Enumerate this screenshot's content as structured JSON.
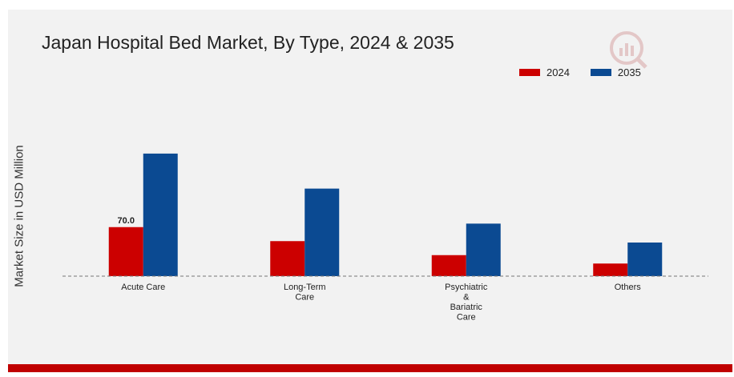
{
  "chart_data": {
    "type": "bar",
    "title": "Japan Hospital Bed Market, By Type, 2024 & 2035",
    "ylabel": "Market Size in USD Million",
    "xlabel": "",
    "categories": [
      "Acute Care",
      "Long-Term Care",
      "Psychiatric & Bariatric Care",
      "Others"
    ],
    "category_label_lines": [
      [
        "Acute Care"
      ],
      [
        "Long-Term",
        "Care"
      ],
      [
        "Psychiatric",
        "&",
        "Bariatric",
        "Care"
      ],
      [
        "Others"
      ]
    ],
    "series": [
      {
        "name": "2024",
        "color": "#cc0000",
        "values": [
          70.0,
          50.0,
          30.0,
          18.0
        ]
      },
      {
        "name": "2035",
        "color": "#0b4a92",
        "values": [
          175.0,
          125.0,
          75.0,
          48.0
        ]
      }
    ],
    "data_labels": [
      {
        "series": 0,
        "category": 0,
        "text": "70.0"
      }
    ],
    "ylim": [
      0,
      200
    ],
    "grid": false,
    "legend_position": "top-right",
    "baseline": "dashed"
  },
  "watermark_icon": "analytics-logo-icon"
}
